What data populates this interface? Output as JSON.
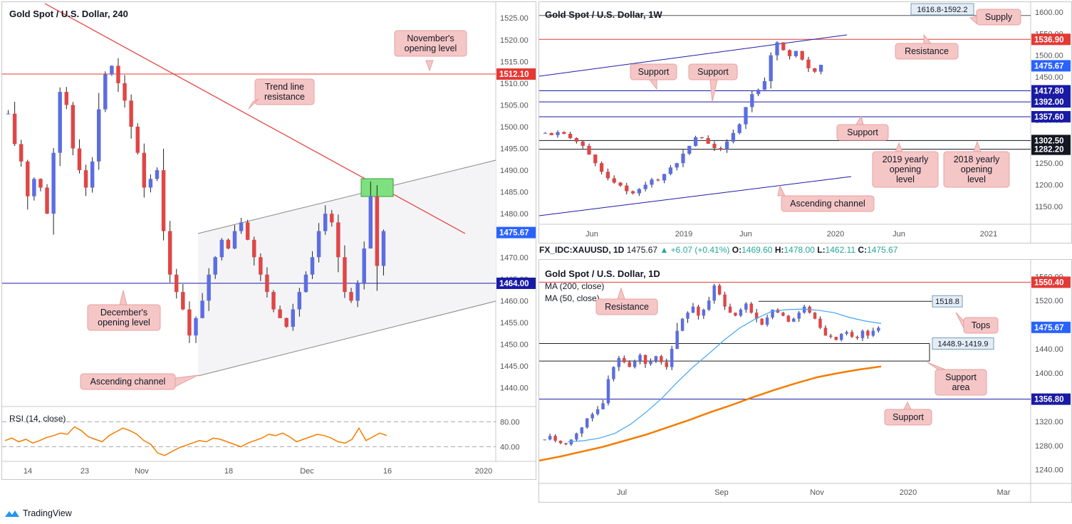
{
  "chart_data": [
    {
      "type": "candlestick",
      "title": "Gold Spot / U.S. Dollar, 240",
      "x_tick_labels": [
        "14",
        "23",
        "Nov",
        "18",
        "Dec",
        "16",
        "2020"
      ],
      "y_tick_labels": [
        "1525.00",
        "1520.00",
        "1515.00",
        "1510.00",
        "1505.00",
        "1500.00",
        "1495.00",
        "1490.00",
        "1485.00",
        "1480.00",
        "1475.00",
        "1470.00",
        "1465.00",
        "1460.00",
        "1455.00",
        "1450.00",
        "1445.00",
        "1440.00"
      ],
      "ylim": [
        1436,
        1527
      ],
      "price_tags": [
        {
          "label": "1512.10",
          "value": 1512.1,
          "color": "#e53935"
        },
        {
          "label": "1475.67",
          "value": 1475.67,
          "color": "#2962ff"
        },
        {
          "label": "1464.00",
          "value": 1464.0,
          "color": "#1a1aa6"
        }
      ],
      "annotations": [
        "November's opening level",
        "Trend line resistance",
        "December's opening level",
        "Ascending channel"
      ],
      "close_path": [
        1503,
        1496,
        1492,
        1484,
        1488,
        1486,
        1480,
        1494,
        1508,
        1505,
        1495,
        1490,
        1486,
        1492,
        1504,
        1512,
        1514,
        1510,
        1506,
        1500,
        1494,
        1486,
        1488,
        1490,
        1476,
        1466,
        1462,
        1458,
        1452,
        1456,
        1460,
        1466,
        1470,
        1474,
        1472,
        1476,
        1478,
        1474,
        1470,
        1466,
        1462,
        1458,
        1456,
        1454,
        1458,
        1462,
        1466,
        1470,
        1476,
        1480,
        1478,
        1470,
        1462,
        1460,
        1464,
        1472,
        1484,
        1468,
        1476
      ]
    },
    {
      "type": "line",
      "title": "RSI (14, close)",
      "y_tick_labels": [
        "80.00",
        "40.00"
      ],
      "ylim": [
        20,
        100
      ],
      "series": [
        {
          "values": [
            50,
            54,
            48,
            52,
            46,
            50,
            55,
            58,
            62,
            60,
            72,
            66,
            56,
            52,
            48,
            58,
            64,
            70,
            66,
            60,
            50,
            44,
            30,
            26,
            32,
            38,
            42,
            46,
            50,
            48,
            54,
            52,
            48,
            44,
            40,
            46,
            50,
            54,
            60,
            58,
            62,
            56,
            48,
            52,
            56,
            60,
            58,
            54,
            48,
            46,
            52,
            70,
            50,
            56,
            62,
            58
          ]
        }
      ]
    },
    {
      "type": "candlestick",
      "title": "Gold Spot / U.S. Dollar, 1W",
      "x_tick_labels": [
        "Jun",
        "2019",
        "Jun",
        "2020",
        "Jun",
        "2021"
      ],
      "y_tick_labels": [
        "1600.00",
        "1550.00",
        "1500.00",
        "1450.00",
        "1400.00",
        "1350.00",
        "1300.00",
        "1250.00",
        "1200.00",
        "1150.00"
      ],
      "ylim": [
        1115,
        1610
      ],
      "price_tags": [
        {
          "label": "1536.90",
          "value": 1536.9,
          "color": "#e53935"
        },
        {
          "label": "1475.67",
          "value": 1475.67,
          "color": "#2962ff"
        },
        {
          "label": "1417.80",
          "value": 1417.8,
          "color": "#1a1aa6"
        },
        {
          "label": "1392.00",
          "value": 1392.0,
          "color": "#1a1aa6"
        },
        {
          "label": "1357.60",
          "value": 1357.6,
          "color": "#1a1aa6"
        },
        {
          "label": "1302.50",
          "value": 1302.5,
          "color": "#131722"
        },
        {
          "label": "1282.20",
          "value": 1282.2,
          "color": "#131722"
        }
      ],
      "zone_label": "1616.8-1592.2",
      "annotations": [
        "Supply",
        "Resistance",
        "Support",
        "Support",
        "Support",
        "2019 yearly opening level",
        "2018 yearly opening level",
        "Ascending channel"
      ],
      "close_path": [
        1320,
        1315,
        1322,
        1318,
        1308,
        1300,
        1290,
        1270,
        1250,
        1230,
        1215,
        1205,
        1198,
        1185,
        1180,
        1190,
        1200,
        1212,
        1210,
        1225,
        1240,
        1250,
        1272,
        1290,
        1310,
        1308,
        1295,
        1285,
        1282,
        1300,
        1320,
        1340,
        1380,
        1410,
        1420,
        1440,
        1500,
        1530,
        1512,
        1498,
        1510,
        1490,
        1470,
        1462,
        1478
      ]
    },
    {
      "type": "candlestick",
      "title": "Gold Spot / U.S. Dollar, 1D",
      "x_tick_labels": [
        "Jul",
        "Sep",
        "Nov",
        "2020",
        "Mar"
      ],
      "y_tick_labels": [
        "1560.00",
        "1520.00",
        "1480.00",
        "1440.00",
        "1400.00",
        "1360.00",
        "1320.00",
        "1280.00",
        "1240.00"
      ],
      "ylim": [
        1222,
        1578
      ],
      "info": {
        "symbol": "FX_IDC:XAUUSD, 1D",
        "last": "1475.67",
        "change": "+6.07 (+0.41%)",
        "open": "1469.60",
        "high": "1478.00",
        "low": "1462.11",
        "close": "1475.67"
      },
      "legend": [
        "MA (200, close)",
        "MA (50, close)"
      ],
      "price_tags": [
        {
          "label": "1550.40",
          "value": 1550.4,
          "color": "#e53935"
        },
        {
          "label": "1475.67",
          "value": 1475.67,
          "color": "#2962ff"
        },
        {
          "label": "1356.80",
          "value": 1356.8,
          "color": "#1a1aa6"
        }
      ],
      "zone_labels": [
        "1518.8",
        "1448.9-1419.9"
      ],
      "annotations": [
        "Resistance",
        "Tops",
        "Support area",
        "Support"
      ],
      "close_path": [
        1290,
        1296,
        1288,
        1284,
        1282,
        1290,
        1300,
        1310,
        1325,
        1332,
        1340,
        1350,
        1390,
        1410,
        1425,
        1418,
        1410,
        1420,
        1430,
        1415,
        1420,
        1428,
        1418,
        1410,
        1440,
        1470,
        1490,
        1500,
        1510,
        1495,
        1505,
        1520,
        1545,
        1530,
        1510,
        1500,
        1495,
        1505,
        1515,
        1500,
        1490,
        1480,
        1492,
        1505,
        1500,
        1495,
        1485,
        1490,
        1500,
        1510,
        1500,
        1490,
        1475,
        1462,
        1460,
        1455,
        1465,
        1468,
        1460,
        1458,
        1470,
        1462,
        1470,
        1475
      ]
    }
  ],
  "footer": {
    "brand": "TradingView"
  }
}
